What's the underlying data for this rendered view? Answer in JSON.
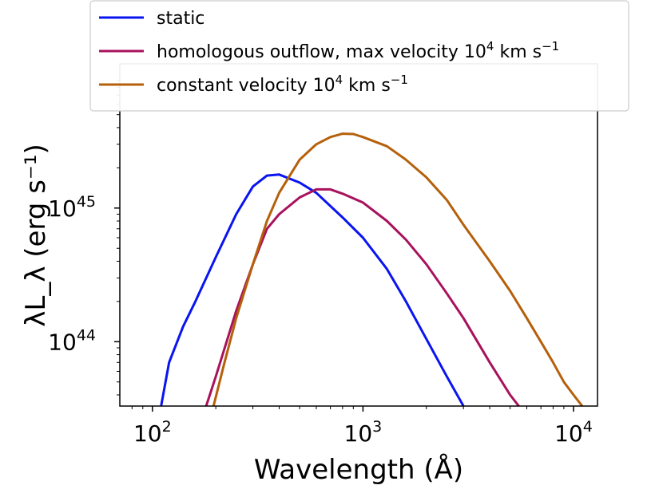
{
  "chart_data": {
    "type": "line",
    "xlabel": "Wavelength (Å)",
    "ylabel": "λL_λ (erg s⁻¹)",
    "x_scale": "log",
    "y_scale": "log",
    "xlim": [
      70,
      13000
    ],
    "ylim": [
      3.3e+43,
      1.2e+46
    ],
    "grid": false,
    "legend_position": "top",
    "x_ticks": [
      {
        "value": 100,
        "base": "10",
        "exp": "2"
      },
      {
        "value": 1000,
        "base": "10",
        "exp": "3"
      },
      {
        "value": 10000,
        "base": "10",
        "exp": "4"
      }
    ],
    "y_ticks": [
      {
        "value": 1e+44,
        "base": "10",
        "exp": "44"
      },
      {
        "value": 1e+45,
        "base": "10",
        "exp": "45"
      }
    ],
    "series": [
      {
        "name": "static",
        "legend": {
          "text": "static",
          "sup": "",
          "tail": ""
        },
        "color": "#0a14f0",
        "x": [
          110,
          120,
          140,
          160,
          200,
          250,
          300,
          350,
          400,
          500,
          600,
          800,
          1000,
          1300,
          1600,
          2000,
          2500,
          3000
        ],
        "y": [
          3.3e+43,
          7e+43,
          1.3e+44,
          2e+44,
          4.3e+44,
          9e+44,
          1.45e+45,
          1.75e+45,
          1.78e+45,
          1.55e+45,
          1.3e+45,
          8.5e+44,
          6e+44,
          3.5e+44,
          2e+44,
          1.05e+44,
          5.5e+43,
          3.3e+43
        ]
      },
      {
        "name": "homologous outflow, max velocity 10^4 km s^-1",
        "legend": {
          "text": "homologous outflow, max velocity 10",
          "sup": "4",
          "tail": " km s",
          "tail_sup": "−1"
        },
        "color": "#a8125c",
        "x": [
          180,
          200,
          250,
          300,
          350,
          400,
          500,
          600,
          700,
          800,
          1000,
          1300,
          1600,
          2000,
          2500,
          3000,
          4000,
          5000,
          5500
        ],
        "y": [
          3.3e+43,
          5.5e+43,
          1.7e+44,
          3.8e+44,
          7e+44,
          9e+44,
          1.2e+45,
          1.38e+45,
          1.38e+45,
          1.28e+45,
          1.1e+45,
          8e+44,
          5.8e+44,
          3.8e+44,
          2.3e+44,
          1.5e+44,
          7e+43,
          4e+43,
          3.3e+43
        ]
      },
      {
        "name": "constant velocity 10^4 km s^-1",
        "legend": {
          "text": "constant velocity 10",
          "sup": "4",
          "tail": " km s",
          "tail_sup": "−1"
        },
        "color": "#b5600b",
        "x": [
          195,
          220,
          250,
          300,
          350,
          400,
          500,
          600,
          700,
          800,
          900,
          1000,
          1300,
          1600,
          2000,
          2500,
          3000,
          4000,
          5000,
          6000,
          7000,
          8000,
          9000,
          10000,
          11000
        ],
        "y": [
          3.3e+43,
          7e+43,
          1.5e+44,
          3.8e+44,
          8e+44,
          1.3e+45,
          2.3e+45,
          3e+45,
          3.4e+45,
          3.6e+45,
          3.58e+45,
          3.4e+45,
          2.9e+45,
          2.3e+45,
          1.7e+45,
          1.15e+45,
          7.5e+44,
          4e+44,
          2.4e+44,
          1.5e+44,
          1e+44,
          7e+43,
          5e+43,
          4e+43,
          3.3e+43
        ]
      }
    ]
  }
}
